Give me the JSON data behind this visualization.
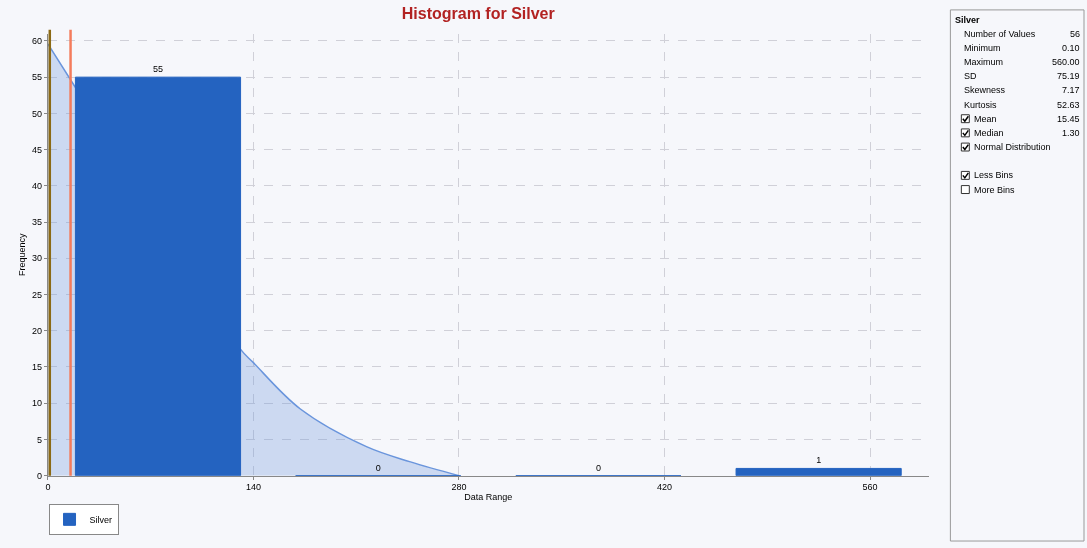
{
  "chart_data": [
    {
      "type": "histogram",
      "title": "Histogram for Silver",
      "xlabel": "Data Range",
      "ylabel": "Frequency",
      "bins": [
        0,
        150,
        300,
        450,
        600
      ],
      "series": [
        {
          "type": "area",
          "color": "#6a95dc",
          "x": [
            0,
            19,
            131,
            140,
            172,
            217,
            247,
            280
          ],
          "values": [
            59.6,
            53.5,
            17.5,
            15.6,
            9.2,
            4.0,
            1.9,
            0
          ]
        },
        {
          "name": "Silver",
          "color": "#2463c0",
          "values": [
            55,
            0,
            0,
            1
          ],
          "value_labels": [
            "55",
            "0",
            "0",
            "1"
          ]
        }
      ],
      "xlim": [
        0,
        600
      ],
      "xticks": [
        0,
        140,
        280,
        420,
        560
      ],
      "ylim": [
        0,
        61
      ],
      "yticks": [
        0,
        5,
        10,
        15,
        20,
        25,
        30,
        35,
        40,
        45,
        50,
        55,
        60
      ],
      "ref_lines": [
        {
          "axis": "x",
          "value": 1.3,
          "color": "#8b6914"
        },
        {
          "axis": "x",
          "value": 15.45,
          "color": "#f47c5c"
        }
      ],
      "grid": true,
      "legend": "bottom left"
    },
    {
      "type": "other",
      "title": "Silver",
      "annotations": [
        "Number of Values",
        "56",
        "Minimum",
        "0.10",
        "Maximum",
        "560.00",
        "SD",
        "75.19",
        "Skewness",
        "7.17",
        "Kurtosis",
        "52.63",
        "Mean",
        "15.45",
        "Median",
        "1.30",
        "Normal Distribution",
        "Less Bins",
        "More Bins"
      ]
    }
  ]
}
